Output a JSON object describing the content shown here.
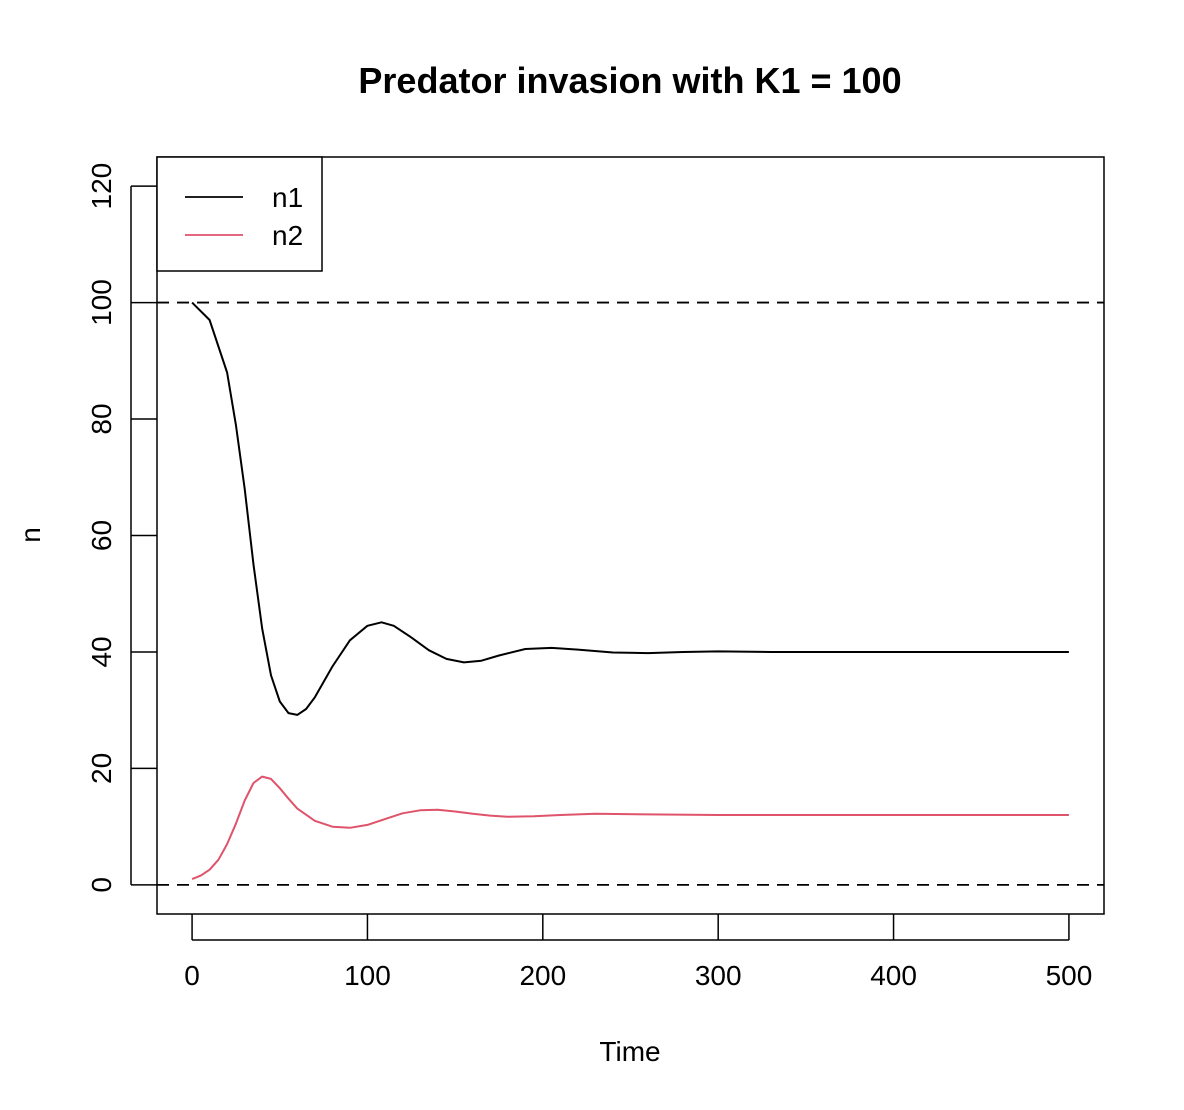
{
  "chart_data": {
    "type": "line",
    "title": "Predator invasion with K1 = 100",
    "xlabel": "Time",
    "ylabel": "n",
    "xlim": [
      -20,
      520
    ],
    "ylim": [
      -5,
      125
    ],
    "xticks": [
      0,
      100,
      200,
      300,
      400,
      500
    ],
    "yticks": [
      0,
      20,
      40,
      60,
      80,
      100,
      120
    ],
    "xtick_labels": [
      "0",
      "100",
      "200",
      "300",
      "400",
      "500"
    ],
    "ytick_labels": [
      "0",
      "20",
      "40",
      "60",
      "80",
      "100",
      "120"
    ],
    "hlines": [
      {
        "y": 100,
        "style": "dashed",
        "color": "#000000"
      },
      {
        "y": 0,
        "style": "dashed",
        "color": "#000000"
      }
    ],
    "legend": {
      "position": "top-left"
    },
    "series": [
      {
        "name": "n1",
        "color": "#000000",
        "points": [
          [
            0,
            100
          ],
          [
            10,
            97
          ],
          [
            20,
            88
          ],
          [
            25,
            79
          ],
          [
            30,
            68
          ],
          [
            35,
            55
          ],
          [
            40,
            44
          ],
          [
            45,
            36
          ],
          [
            50,
            31.5
          ],
          [
            55,
            29.5
          ],
          [
            60,
            29.2
          ],
          [
            65,
            30.2
          ],
          [
            70,
            32.2
          ],
          [
            80,
            37.5
          ],
          [
            90,
            42
          ],
          [
            100,
            44.5
          ],
          [
            108,
            45.1
          ],
          [
            115,
            44.5
          ],
          [
            125,
            42.5
          ],
          [
            135,
            40.3
          ],
          [
            145,
            38.8
          ],
          [
            155,
            38.2
          ],
          [
            165,
            38.5
          ],
          [
            175,
            39.4
          ],
          [
            190,
            40.5
          ],
          [
            205,
            40.7
          ],
          [
            220,
            40.4
          ],
          [
            240,
            39.9
          ],
          [
            260,
            39.8
          ],
          [
            280,
            40.0
          ],
          [
            300,
            40.1
          ],
          [
            330,
            40.0
          ],
          [
            360,
            40.0
          ],
          [
            400,
            40.0
          ],
          [
            450,
            40.0
          ],
          [
            500,
            40.0
          ]
        ]
      },
      {
        "name": "n2",
        "color": "#DF536B",
        "points": [
          [
            0,
            1
          ],
          [
            5,
            1.6
          ],
          [
            10,
            2.6
          ],
          [
            15,
            4.3
          ],
          [
            20,
            7
          ],
          [
            25,
            10.5
          ],
          [
            30,
            14.5
          ],
          [
            35,
            17.5
          ],
          [
            40,
            18.6
          ],
          [
            45,
            18.2
          ],
          [
            50,
            16.6
          ],
          [
            55,
            14.8
          ],
          [
            60,
            13.1
          ],
          [
            70,
            11
          ],
          [
            80,
            10
          ],
          [
            90,
            9.8
          ],
          [
            100,
            10.3
          ],
          [
            110,
            11.3
          ],
          [
            120,
            12.3
          ],
          [
            130,
            12.8
          ],
          [
            140,
            12.9
          ],
          [
            150,
            12.6
          ],
          [
            160,
            12.2
          ],
          [
            170,
            11.9
          ],
          [
            180,
            11.7
          ],
          [
            195,
            11.8
          ],
          [
            210,
            12.0
          ],
          [
            230,
            12.2
          ],
          [
            260,
            12.1
          ],
          [
            300,
            12.0
          ],
          [
            350,
            12.0
          ],
          [
            400,
            12.0
          ],
          [
            500,
            12.0
          ]
        ]
      }
    ]
  }
}
